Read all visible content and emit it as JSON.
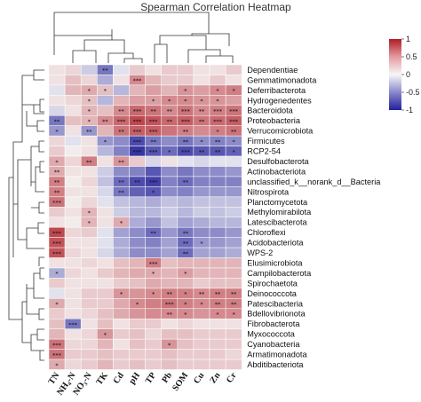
{
  "chart_data": {
    "type": "heatmap",
    "title": "Spearman Correlation Heatmap",
    "columns": [
      "TN",
      "NH₄-N",
      "NO₃-N",
      "TK",
      "Cd",
      "pH",
      "TP",
      "Pb",
      "SOM",
      "Cu",
      "Zn",
      "Cr"
    ],
    "rows": [
      "Dependentiae",
      "Gemmatimonadota",
      "Deferribacterota",
      "Hydrogenedentes",
      "Bacteroidota",
      "Proteobacteria",
      "Verrucomicrobiota",
      "Firmicutes",
      "RCP2-54",
      "Desulfobacterota",
      "Actinobacteriota",
      "unclassified_k__norank_d__Bacteria",
      "Nitrospirota",
      "Planctomycetota",
      "Methylomirabilota",
      "Latescibacterota",
      "Chloroflexi",
      "Acidobacteriota",
      "WPS-2",
      "Elusimicrobiota",
      "Campilobacterota",
      "Spirochaetota",
      "Deinococcota",
      "Patescibacteria",
      "Bdellovibrionota",
      "Fibrobacterota",
      "Myxococcota",
      "Cyanobacteria",
      "Armatimonadota",
      "Abditibacteriota"
    ],
    "values": [
      [
        0.1,
        0.15,
        -0.2,
        -0.6,
        -0.1,
        0.2,
        0.1,
        0.2,
        0.2,
        0.1,
        0.1,
        0.2
      ],
      [
        0.1,
        0.25,
        0.15,
        -0.35,
        0.1,
        0.5,
        0.3,
        0.2,
        0.2,
        0.1,
        0.2,
        0.1
      ],
      [
        -0.1,
        0.3,
        0.35,
        0.25,
        -0.3,
        0.3,
        0.4,
        0.3,
        0.45,
        0.4,
        0.5,
        0.55
      ],
      [
        0.1,
        0.15,
        0.25,
        -0.3,
        0.3,
        0.4,
        0.4,
        0.5,
        0.5,
        0.45,
        0.45,
        0.4
      ],
      [
        -0.15,
        0.1,
        0.3,
        0.25,
        0.5,
        0.65,
        0.6,
        0.5,
        0.6,
        0.5,
        0.55,
        0.6
      ],
      [
        -0.6,
        0.25,
        0.3,
        0.5,
        0.65,
        0.8,
        0.75,
        0.65,
        0.7,
        0.6,
        0.65,
        0.7
      ],
      [
        -0.45,
        0.1,
        -0.45,
        0.3,
        0.6,
        0.7,
        0.7,
        0.6,
        0.55,
        0.5,
        0.55,
        0.6
      ],
      [
        0.15,
        -0.1,
        0.1,
        -0.45,
        -0.5,
        -0.8,
        -0.6,
        -0.5,
        -0.6,
        -0.5,
        -0.55,
        -0.5
      ],
      [
        0.2,
        0.05,
        0.1,
        -0.3,
        -0.55,
        -0.9,
        -0.75,
        -0.65,
        -0.8,
        -0.75,
        -0.75,
        -0.7
      ],
      [
        0.35,
        0.15,
        0.55,
        0.1,
        0.45,
        0.2,
        -0.15,
        0.1,
        -0.1,
        -0.15,
        -0.1,
        -0.1
      ],
      [
        0.35,
        0.1,
        0.1,
        -0.2,
        -0.5,
        -0.55,
        -0.75,
        -0.5,
        -0.6,
        -0.5,
        -0.5,
        -0.45
      ],
      [
        0.55,
        0.05,
        0.15,
        -0.25,
        -0.65,
        -0.8,
        -0.85,
        -0.55,
        -0.65,
        -0.55,
        -0.55,
        -0.55
      ],
      [
        0.55,
        0.1,
        0.1,
        -0.15,
        -0.6,
        -0.7,
        -0.75,
        -0.5,
        -0.55,
        -0.45,
        -0.45,
        -0.45
      ],
      [
        0.6,
        0.05,
        0.15,
        -0.1,
        -0.25,
        -0.3,
        -0.35,
        -0.25,
        -0.3,
        -0.25,
        -0.25,
        -0.25
      ],
      [
        0.2,
        0.1,
        0.3,
        0.1,
        -0.2,
        -0.3,
        -0.3,
        -0.2,
        -0.3,
        -0.2,
        -0.25,
        -0.2
      ],
      [
        0.1,
        0.05,
        0.3,
        0.1,
        0.35,
        -0.35,
        -0.45,
        -0.25,
        -0.4,
        -0.35,
        -0.3,
        -0.3
      ],
      [
        0.8,
        0.15,
        0.2,
        -0.1,
        -0.4,
        -0.5,
        -0.65,
        -0.45,
        -0.6,
        -0.5,
        -0.5,
        -0.45
      ],
      [
        0.75,
        0.1,
        0.1,
        -0.1,
        -0.35,
        -0.5,
        -0.55,
        -0.4,
        -0.65,
        -0.45,
        -0.45,
        -0.4
      ],
      [
        0.75,
        0.15,
        0.1,
        -0.15,
        -0.35,
        -0.5,
        -0.5,
        -0.4,
        -0.65,
        -0.4,
        -0.4,
        -0.35
      ],
      [
        0.1,
        0.1,
        0.15,
        0.1,
        0.25,
        0.3,
        0.55,
        0.25,
        0.3,
        0.3,
        0.3,
        0.3
      ],
      [
        -0.35,
        0.15,
        0.1,
        0.2,
        0.3,
        0.35,
        0.35,
        0.3,
        0.4,
        0.3,
        0.3,
        0.3
      ],
      [
        0.2,
        0.1,
        0.1,
        0.1,
        0.2,
        0.25,
        0.35,
        0.3,
        0.3,
        0.2,
        0.25,
        0.25
      ],
      [
        -0.1,
        0.1,
        0.2,
        0.2,
        0.45,
        0.45,
        0.5,
        0.55,
        0.55,
        0.5,
        0.55,
        0.55
      ],
      [
        0.35,
        0.1,
        0.2,
        0.2,
        0.35,
        0.5,
        0.55,
        0.6,
        0.55,
        0.5,
        0.55,
        0.55
      ],
      [
        0.2,
        0.1,
        0.15,
        0.25,
        0.35,
        0.45,
        0.5,
        0.5,
        0.5,
        0.45,
        0.5,
        0.5
      ],
      [
        0.25,
        -0.6,
        0.1,
        0.25,
        0.1,
        0.2,
        0.2,
        0.1,
        0.15,
        0.1,
        0.1,
        0.1
      ],
      [
        0.3,
        0.1,
        0.15,
        0.45,
        0.2,
        0.25,
        0.15,
        0.25,
        0.25,
        0.2,
        0.2,
        0.2
      ],
      [
        0.6,
        0.15,
        0.15,
        0.3,
        0.1,
        0.25,
        0.2,
        0.45,
        0.25,
        0.2,
        0.2,
        0.2
      ],
      [
        0.6,
        0.2,
        0.2,
        0.25,
        0.2,
        0.2,
        0.2,
        0.25,
        0.2,
        0.2,
        0.2,
        0.15
      ],
      [
        0.35,
        0.15,
        0.2,
        0.3,
        0.2,
        0.25,
        0.2,
        0.25,
        0.2,
        0.2,
        0.2,
        0.2
      ]
    ],
    "stars": [
      [
        "",
        "",
        "",
        "**",
        "",
        "",
        "",
        "",
        "",
        "",
        "",
        ""
      ],
      [
        "",
        "",
        "",
        "",
        "",
        "***",
        "",
        "",
        "",
        "",
        "",
        ""
      ],
      [
        "",
        "",
        "*",
        "*",
        "",
        "",
        "",
        "",
        "*",
        "",
        "*",
        "*"
      ],
      [
        "",
        "",
        "*",
        "",
        "",
        "",
        "*",
        "*",
        "*",
        "*",
        "*",
        ""
      ],
      [
        "",
        "",
        "*",
        "",
        "**",
        "***",
        "**",
        "**",
        "***",
        "**",
        "***",
        "***"
      ],
      [
        "**",
        "",
        "*",
        "**",
        "***",
        "***",
        "***",
        "**",
        "***",
        "**",
        "***",
        "***"
      ],
      [
        "*",
        "",
        "**",
        "",
        "**",
        "***",
        "***",
        "",
        "**",
        "",
        "*",
        "**"
      ],
      [
        "",
        "",
        "",
        "*",
        "",
        "***",
        "**",
        "",
        "**",
        "*",
        "**",
        "*"
      ],
      [
        "",
        "",
        "",
        "",
        "",
        "***",
        "***",
        "*",
        "***",
        "**",
        "**",
        "*"
      ],
      [
        "*",
        "",
        "**",
        "",
        "**",
        "",
        "",
        "",
        "",
        "",
        "",
        ""
      ],
      [
        "**",
        "",
        "",
        "",
        "",
        "",
        "",
        "",
        "",
        "",
        "",
        ""
      ],
      [
        "**",
        "",
        "",
        "",
        "**",
        "**",
        "***",
        "",
        "**",
        "",
        "",
        ""
      ],
      [
        "**",
        "",
        "",
        "",
        "**",
        "",
        "*",
        "",
        "",
        "",
        "",
        ""
      ],
      [
        "***",
        "",
        "",
        "",
        "",
        "",
        "",
        "",
        "",
        "",
        "",
        ""
      ],
      [
        "",
        "",
        "*",
        "",
        "",
        "",
        "",
        "",
        "",
        "",
        "",
        ""
      ],
      [
        "",
        "",
        "*",
        "",
        "*",
        "",
        "",
        "",
        "",
        "",
        "",
        ""
      ],
      [
        "***",
        "",
        "",
        "",
        "",
        "",
        "**",
        "",
        "**",
        "",
        "",
        ""
      ],
      [
        "***",
        "",
        "",
        "",
        "",
        "",
        "",
        "",
        "**",
        "*",
        "",
        ""
      ],
      [
        "***",
        "",
        "",
        "",
        "",
        "",
        "",
        "",
        "**",
        "",
        "",
        ""
      ],
      [
        "",
        "",
        "",
        "",
        "",
        "",
        "***",
        "",
        "",
        "",
        "",
        ""
      ],
      [
        "*",
        "",
        "",
        "",
        "",
        "",
        "*",
        "",
        "*",
        "",
        "",
        ""
      ],
      [
        "",
        "",
        "",
        "",
        "",
        "",
        "",
        "",
        "",
        "",
        "",
        ""
      ],
      [
        "",
        "",
        "",
        "",
        "*",
        "",
        "*",
        "**",
        "*",
        "**",
        "**",
        "**"
      ],
      [
        "*",
        "",
        "",
        "",
        "",
        "*",
        "",
        "***",
        "*",
        "*",
        "**",
        "**"
      ],
      [
        "",
        "",
        "",
        "",
        "",
        "",
        "",
        "**",
        "*",
        "",
        "*",
        "*"
      ],
      [
        "",
        "***",
        "",
        "",
        "",
        "",
        "",
        "",
        "",
        "",
        "",
        ""
      ],
      [
        "",
        "",
        "",
        "*",
        "",
        "",
        "",
        "",
        "",
        "",
        "",
        ""
      ],
      [
        "***",
        "",
        "",
        "",
        "",
        "",
        "",
        "*",
        "",
        "",
        "",
        ""
      ],
      [
        "***",
        "",
        "",
        "",
        "",
        "",
        "",
        "",
        "",
        "",
        "",
        ""
      ],
      [
        "*",
        "",
        "",
        "",
        "",
        "",
        "",
        "",
        "",
        "",
        "",
        ""
      ]
    ],
    "color_scale": {
      "min": -1,
      "max": 1,
      "low_color": "#22209a",
      "mid_color": "#f7f7f7",
      "high_color": "#b01c26",
      "ticks": [
        "1",
        "0.5",
        "0",
        "-0.5",
        "-1"
      ],
      "legend_position": "top-right"
    }
  }
}
